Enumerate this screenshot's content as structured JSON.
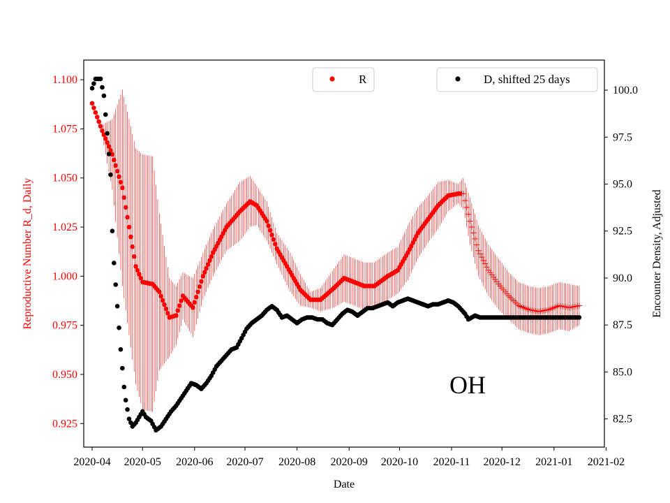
{
  "chart_data": {
    "type": "scatter",
    "title": "",
    "state_annotation": "OH",
    "xlabel": "Date",
    "ylabel_left": "Reproductive Number R_d, Daily",
    "ylabel_right": "Encounter Density, Adjusted",
    "x_ticks": [
      "2020-04",
      "2020-05",
      "2020-06",
      "2020-07",
      "2020-08",
      "2020-09",
      "2020-10",
      "2020-11",
      "2020-12",
      "2021-01",
      "2021-02"
    ],
    "x_range_days": [
      -5,
      305
    ],
    "ylim_left": [
      0.913,
      1.11
    ],
    "ylim_right": [
      81.0,
      101.6
    ],
    "y_ticks_left": [
      "0.925",
      "0.950",
      "0.975",
      "1.000",
      "1.025",
      "1.050",
      "1.075",
      "1.100"
    ],
    "y_ticks_right": [
      "82.5",
      "85.0",
      "87.5",
      "90.0",
      "92.5",
      "95.0",
      "97.5",
      "100.0"
    ],
    "colors": {
      "r_series": "#ff0000",
      "d_series": "#000000",
      "left_axis_text": "#ff0000"
    },
    "legend_r": {
      "label": "R",
      "placement": "top-center"
    },
    "legend_d": {
      "label": "D, shifted 25 days",
      "placement": "top-right"
    },
    "series": [
      {
        "name": "R",
        "axis": "left",
        "marker": "dot-then-plus",
        "plus_marker_from_day": 220,
        "error_bars": true,
        "points": [
          [
            0,
            1.088,
            0.0
          ],
          [
            6,
            1.074,
            0.003
          ],
          [
            12,
            1.062,
            0.018
          ],
          [
            18,
            1.045,
            0.05
          ],
          [
            22,
            1.025,
            0.055
          ],
          [
            26,
            1.005,
            0.06
          ],
          [
            30,
            0.997,
            0.065
          ],
          [
            36,
            0.996,
            0.065
          ],
          [
            40,
            0.992,
            0.04
          ],
          [
            46,
            0.979,
            0.02
          ],
          [
            50,
            0.98,
            0.015
          ],
          [
            54,
            0.99,
            0.012
          ],
          [
            60,
            0.984,
            0.015
          ],
          [
            66,
            1.0,
            0.012
          ],
          [
            72,
            1.012,
            0.012
          ],
          [
            80,
            1.025,
            0.012
          ],
          [
            88,
            1.033,
            0.015
          ],
          [
            94,
            1.038,
            0.013
          ],
          [
            98,
            1.036,
            0.01
          ],
          [
            104,
            1.028,
            0.01
          ],
          [
            110,
            1.014,
            0.008
          ],
          [
            118,
            1.002,
            0.01
          ],
          [
            124,
            0.993,
            0.008
          ],
          [
            130,
            0.988,
            0.004
          ],
          [
            136,
            0.988,
            0.006
          ],
          [
            144,
            0.994,
            0.01
          ],
          [
            150,
            0.999,
            0.012
          ],
          [
            156,
            0.997,
            0.012
          ],
          [
            162,
            0.995,
            0.012
          ],
          [
            168,
            0.995,
            0.012
          ],
          [
            176,
            1.0,
            0.012
          ],
          [
            182,
            1.003,
            0.012
          ],
          [
            188,
            1.012,
            0.014
          ],
          [
            194,
            1.022,
            0.013
          ],
          [
            200,
            1.029,
            0.012
          ],
          [
            206,
            1.036,
            0.012
          ],
          [
            212,
            1.041,
            0.008
          ],
          [
            218,
            1.042,
            0.005
          ],
          [
            221,
            1.042,
            0.008
          ],
          [
            225,
            1.028,
            0.012
          ],
          [
            230,
            1.013,
            0.013
          ],
          [
            236,
            1.003,
            0.013
          ],
          [
            242,
            0.996,
            0.013
          ],
          [
            248,
            0.99,
            0.012
          ],
          [
            254,
            0.985,
            0.012
          ],
          [
            260,
            0.983,
            0.012
          ],
          [
            266,
            0.982,
            0.012
          ],
          [
            272,
            0.983,
            0.012
          ],
          [
            278,
            0.985,
            0.012
          ],
          [
            284,
            0.984,
            0.012
          ],
          [
            290,
            0.985,
            0.01
          ]
        ]
      },
      {
        "name": "D, shifted 25 days",
        "axis": "right",
        "marker": "dot",
        "points": [
          [
            0,
            100.1
          ],
          [
            2,
            100.6
          ],
          [
            5,
            100.6
          ],
          [
            7,
            99.7
          ],
          [
            9,
            97.7
          ],
          [
            11,
            95.5
          ],
          [
            12,
            92.5
          ],
          [
            13,
            90.8
          ],
          [
            15,
            88.5
          ],
          [
            17,
            86.2
          ],
          [
            19,
            84.2
          ],
          [
            20,
            83.5
          ],
          [
            22,
            82.5
          ],
          [
            24,
            82.1
          ],
          [
            26,
            82.3
          ],
          [
            28,
            82.6
          ],
          [
            30,
            82.9
          ],
          [
            32,
            82.6
          ],
          [
            35,
            82.4
          ],
          [
            38,
            81.9
          ],
          [
            41,
            82.1
          ],
          [
            44,
            82.5
          ],
          [
            47,
            82.9
          ],
          [
            50,
            83.2
          ],
          [
            53,
            83.6
          ],
          [
            56,
            84.0
          ],
          [
            59,
            84.4
          ],
          [
            62,
            84.3
          ],
          [
            65,
            84.1
          ],
          [
            68,
            84.4
          ],
          [
            71,
            84.8
          ],
          [
            74,
            85.3
          ],
          [
            77,
            85.6
          ],
          [
            80,
            85.9
          ],
          [
            83,
            86.2
          ],
          [
            86,
            86.3
          ],
          [
            89,
            86.8
          ],
          [
            92,
            87.3
          ],
          [
            95,
            87.6
          ],
          [
            98,
            87.8
          ],
          [
            101,
            88.0
          ],
          [
            104,
            88.3
          ],
          [
            107,
            88.5
          ],
          [
            110,
            88.3
          ],
          [
            113,
            87.9
          ],
          [
            116,
            88.0
          ],
          [
            119,
            87.8
          ],
          [
            122,
            87.6
          ],
          [
            125,
            87.8
          ],
          [
            128,
            87.9
          ],
          [
            131,
            87.9
          ],
          [
            134,
            87.8
          ],
          [
            137,
            87.8
          ],
          [
            140,
            87.6
          ],
          [
            143,
            87.5
          ],
          [
            146,
            87.8
          ],
          [
            149,
            88.1
          ],
          [
            152,
            88.3
          ],
          [
            155,
            88.2
          ],
          [
            158,
            88.0
          ],
          [
            161,
            88.2
          ],
          [
            164,
            88.4
          ],
          [
            167,
            88.4
          ],
          [
            170,
            88.5
          ],
          [
            173,
            88.6
          ],
          [
            176,
            88.7
          ],
          [
            179,
            88.5
          ],
          [
            182,
            88.7
          ],
          [
            185,
            88.8
          ],
          [
            188,
            88.9
          ],
          [
            191,
            88.8
          ],
          [
            194,
            88.7
          ],
          [
            197,
            88.6
          ],
          [
            200,
            88.5
          ],
          [
            203,
            88.6
          ],
          [
            206,
            88.6
          ],
          [
            209,
            88.7
          ],
          [
            212,
            88.8
          ],
          [
            215,
            88.7
          ],
          [
            218,
            88.5
          ],
          [
            220,
            88.3
          ],
          [
            222,
            88.1
          ],
          [
            224,
            87.8
          ],
          [
            226,
            87.9
          ],
          [
            228,
            88.0
          ],
          [
            231,
            87.9
          ],
          [
            234,
            87.9
          ],
          [
            240,
            87.9
          ],
          [
            250,
            87.9
          ],
          [
            260,
            87.9
          ],
          [
            270,
            87.9
          ],
          [
            280,
            87.9
          ],
          [
            290,
            87.9
          ]
        ]
      }
    ]
  }
}
